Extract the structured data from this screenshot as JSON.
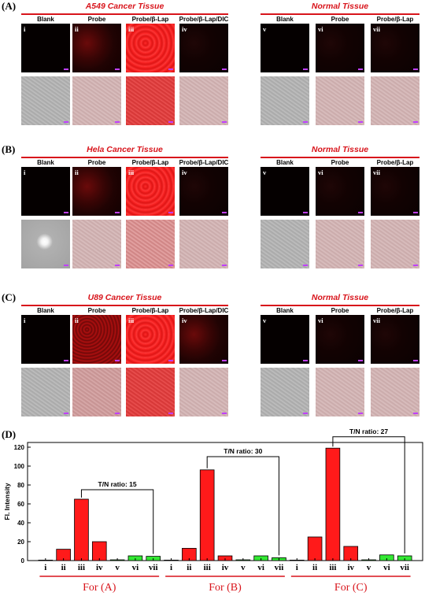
{
  "panels": [
    {
      "label": "(A)",
      "cancer_title": "A549 Cancer Tissue",
      "normal_title": "Normal Tissue",
      "cancer_cols": [
        {
          "header": "Blank",
          "roman": "i"
        },
        {
          "header": "Probe",
          "roman": "ii"
        },
        {
          "header": "Probe/β-Lap",
          "roman": "iii"
        },
        {
          "header": "Probe/β-Lap/DIC",
          "roman": "iv"
        }
      ],
      "normal_cols": [
        {
          "header": "Blank",
          "roman": "v"
        },
        {
          "header": "Probe",
          "roman": "vi"
        },
        {
          "header": "Probe/β-Lap",
          "roman": "vii"
        }
      ]
    },
    {
      "label": "(B)",
      "cancer_title": "Hela Cancer Tissue",
      "normal_title": "Normal Tissue",
      "cancer_cols": [
        {
          "header": "Blank",
          "roman": "i"
        },
        {
          "header": "Probe",
          "roman": "ii"
        },
        {
          "header": "Probe/β-Lap",
          "roman": "iii"
        },
        {
          "header": "Probe/β-Lap/DIC",
          "roman": "iv"
        }
      ],
      "normal_cols": [
        {
          "header": "Blank",
          "roman": "v"
        },
        {
          "header": "Probe",
          "roman": "vi"
        },
        {
          "header": "Probe/β-Lap",
          "roman": "vii"
        }
      ]
    },
    {
      "label": "(C)",
      "cancer_title": "U89 Cancer Tissue",
      "normal_title": "Normal Tissue",
      "cancer_cols": [
        {
          "header": "Blank",
          "roman": "i"
        },
        {
          "header": "Probe",
          "roman": "ii"
        },
        {
          "header": "Probe/β-Lap",
          "roman": "iii"
        },
        {
          "header": "Probe/β-Lap/DIC",
          "roman": "iv"
        }
      ],
      "normal_cols": [
        {
          "header": "Blank",
          "roman": "v"
        },
        {
          "header": "Probe",
          "roman": "vi"
        },
        {
          "header": "Probe/β-Lap",
          "roman": "vii"
        }
      ]
    }
  ],
  "panel_d_label": "(D)",
  "chart_data": {
    "type": "bar",
    "ylabel": "Fl. Intensity",
    "ylim": [
      0,
      125
    ],
    "yticks": [
      0,
      20,
      40,
      60,
      80,
      100,
      120
    ],
    "colors": {
      "cancer": "#ff1a1a",
      "normal": "#33e833"
    },
    "groups": [
      {
        "label": "For (A)",
        "categories": [
          "i",
          "ii",
          "iii",
          "iv",
          "v",
          "vi",
          "vii"
        ],
        "values": [
          0.5,
          12,
          65,
          20,
          0.8,
          5,
          4.5
        ],
        "ratio_label": "T/N ratio: 15"
      },
      {
        "label": "For (B)",
        "categories": [
          "i",
          "ii",
          "iii",
          "iv",
          "v",
          "vi",
          "vii"
        ],
        "values": [
          0.5,
          13,
          96,
          5,
          0.8,
          5,
          3
        ],
        "ratio_label": "T/N ratio: 30"
      },
      {
        "label": "For (C)",
        "categories": [
          "i",
          "ii",
          "iii",
          "iv",
          "v",
          "vi",
          "vii"
        ],
        "values": [
          0.5,
          25,
          119,
          15,
          0.8,
          6,
          5
        ],
        "ratio_label": "T/N ratio: 27"
      }
    ]
  }
}
